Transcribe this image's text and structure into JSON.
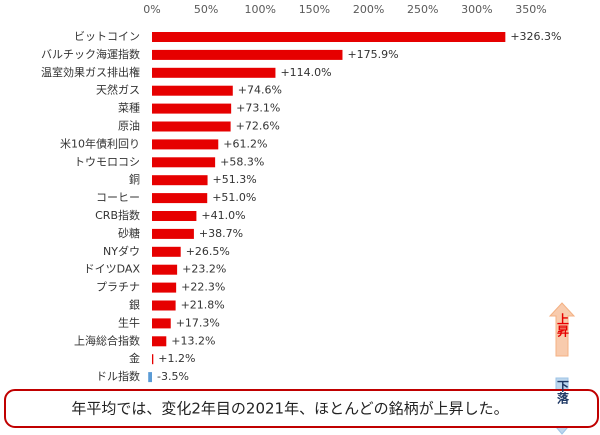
{
  "chart_data": {
    "type": "bar",
    "orientation": "horizontal",
    "categories": [
      "ビットコイン",
      "バルチック海運指数",
      "温室効果ガス排出権",
      "天然ガス",
      "菜種",
      "原油",
      "米10年債利回り",
      "トウモロコシ",
      "銅",
      "コーヒー",
      "CRB指数",
      "砂糖",
      "NYダウ",
      "ドイツDAX",
      "プラチナ",
      "銀",
      "生牛",
      "上海総合指数",
      "金",
      "ドル指数"
    ],
    "values": [
      326.3,
      175.9,
      114.0,
      74.6,
      73.1,
      72.6,
      61.2,
      58.3,
      51.3,
      51.0,
      41.0,
      38.7,
      26.5,
      23.2,
      22.3,
      21.8,
      17.3,
      13.2,
      1.2,
      -3.5
    ],
    "value_labels": [
      "+326.3%",
      "+175.9%",
      "+114.0%",
      "+74.6%",
      "+73.1%",
      "+72.6%",
      "+61.2%",
      "+58.3%",
      "+51.3%",
      "+51.0%",
      "+41.0%",
      "+38.7%",
      "+26.5%",
      "+23.2%",
      "+22.3%",
      "+21.8%",
      "+17.3%",
      "+13.2%",
      "+1.2%",
      "-3.5%"
    ],
    "color": "#e60000",
    "negative_color": "#5b9bd5",
    "xlim": [
      0,
      350
    ],
    "xticks": [
      {
        "value": 0,
        "label": "0%"
      },
      {
        "value": 50,
        "label": "50%"
      },
      {
        "value": 100,
        "label": "100%"
      },
      {
        "value": 150,
        "label": "150%"
      },
      {
        "value": 200,
        "label": "200%"
      },
      {
        "value": 250,
        "label": "250%"
      },
      {
        "value": 300,
        "label": "300%"
      },
      {
        "value": 350,
        "label": "350%"
      }
    ],
    "grid": false,
    "annotation": "年平均では、変化2年目の2021年、ほとんどの銘柄が上昇した。",
    "up_label": "上昇",
    "down_label": "下落"
  }
}
